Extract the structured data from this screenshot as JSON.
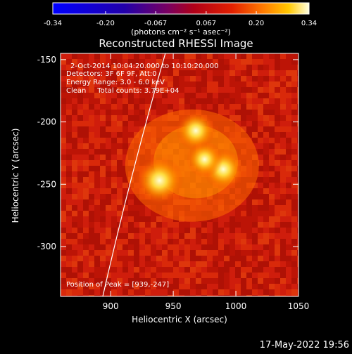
{
  "colorbar": {
    "ticks": [
      "-0.34",
      "-0.20",
      "-0.067",
      "0.067",
      "0.20",
      "0.34"
    ],
    "tick_values": [
      -0.34,
      -0.2,
      -0.067,
      0.067,
      0.2,
      0.34
    ],
    "range": [
      -0.34,
      0.34
    ],
    "unit_label": "(photons cm⁻² s⁻¹ asec⁻²)"
  },
  "image": {
    "title": "Reconstructed RHESSI Image",
    "info_lines": [
      "2-Oct-2014 10:04:20.000 to 10:10:20.000",
      "Detectors: 3F 6F 9F, Att:0",
      "Energy Range: 3.0 - 6.0 keV",
      "Clean     Total counts: 3.79E+04"
    ],
    "peak_text": "Position of Peak = [939,-247]",
    "xlabel": "Heliocentric X (arcsec)",
    "ylabel": "Heliocentric Y (arcsec)",
    "xticks": [
      "900",
      "950",
      "1000",
      "1050"
    ],
    "xtick_values": [
      900,
      950,
      1000,
      1050
    ],
    "yticks": [
      "-150",
      "-200",
      "-250",
      "-300"
    ],
    "ytick_values": [
      -150,
      -200,
      -250,
      -300
    ],
    "xlim": [
      860,
      1050
    ],
    "ylim": [
      -340,
      -145
    ],
    "sources": [
      {
        "x": 939,
        "y": -247,
        "amp": 0.34
      },
      {
        "x": 968,
        "y": -207,
        "amp": 0.27
      },
      {
        "x": 990,
        "y": -238,
        "amp": 0.28
      },
      {
        "x": 975,
        "y": -230,
        "amp": 0.24
      }
    ]
  },
  "footer": {
    "timestamp": "17-May-2022 19:56"
  }
}
